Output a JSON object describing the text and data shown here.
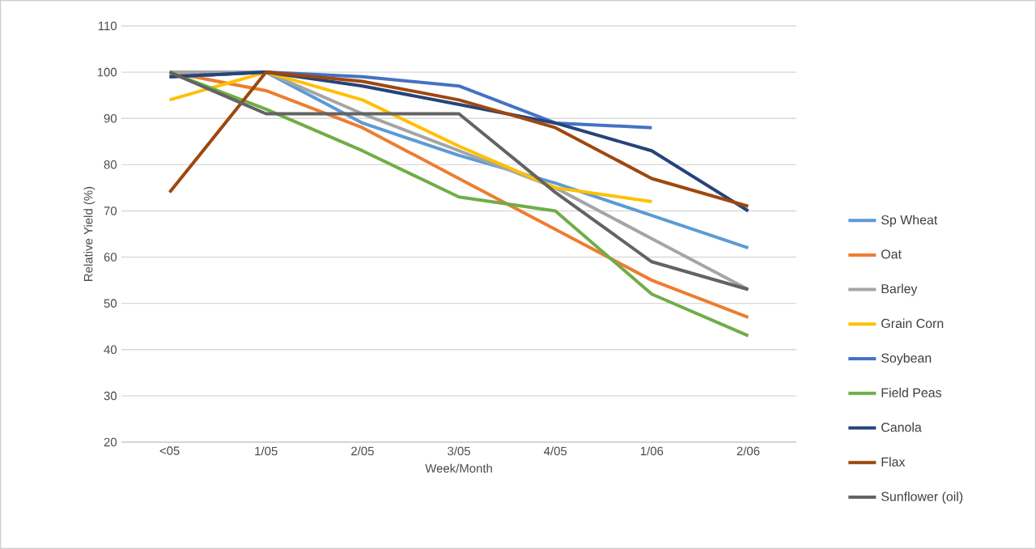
{
  "chart_data": {
    "type": "line",
    "xlabel": "Week/Month",
    "ylabel": "Relative Yield (%)",
    "categories": [
      "<05",
      "1/05",
      "2/05",
      "3/05",
      "4/05",
      "1/06",
      "2/06"
    ],
    "ylim": [
      20,
      110
    ],
    "yticks": [
      20,
      30,
      40,
      50,
      60,
      70,
      80,
      90,
      100,
      110
    ],
    "grid": "y",
    "legend": "right",
    "marker": "none",
    "line_style": "solid",
    "series": [
      {
        "name": "Sp Wheat",
        "color": "#5b9bd5",
        "values": [
          99,
          100,
          89,
          82,
          76,
          69,
          62
        ]
      },
      {
        "name": "Oat",
        "color": "#ed7d31",
        "values": [
          100,
          96,
          88,
          77,
          66,
          55,
          47
        ]
      },
      {
        "name": "Barley",
        "color": "#a5a5a5",
        "values": [
          100,
          100,
          91,
          83,
          75,
          64,
          53
        ]
      },
      {
        "name": "Grain Corn",
        "color": "#ffc000",
        "values": [
          94,
          100,
          94,
          84,
          75,
          72,
          null
        ]
      },
      {
        "name": "Soybean",
        "color": "#4472c4",
        "values": [
          99,
          100,
          99,
          97,
          89,
          88,
          null
        ]
      },
      {
        "name": "Field Peas",
        "color": "#70ad47",
        "values": [
          100,
          92,
          83,
          73,
          70,
          52,
          43
        ]
      },
      {
        "name": "Canola",
        "color": "#264478",
        "values": [
          99,
          100,
          97,
          93,
          89,
          83,
          70
        ]
      },
      {
        "name": "Flax",
        "color": "#9e480e",
        "values": [
          74,
          100,
          98,
          94,
          88,
          77,
          71
        ]
      },
      {
        "name": "Sunflower (oil)",
        "color": "#636363",
        "values": [
          100,
          91,
          91,
          91,
          74,
          59,
          53
        ]
      }
    ]
  }
}
